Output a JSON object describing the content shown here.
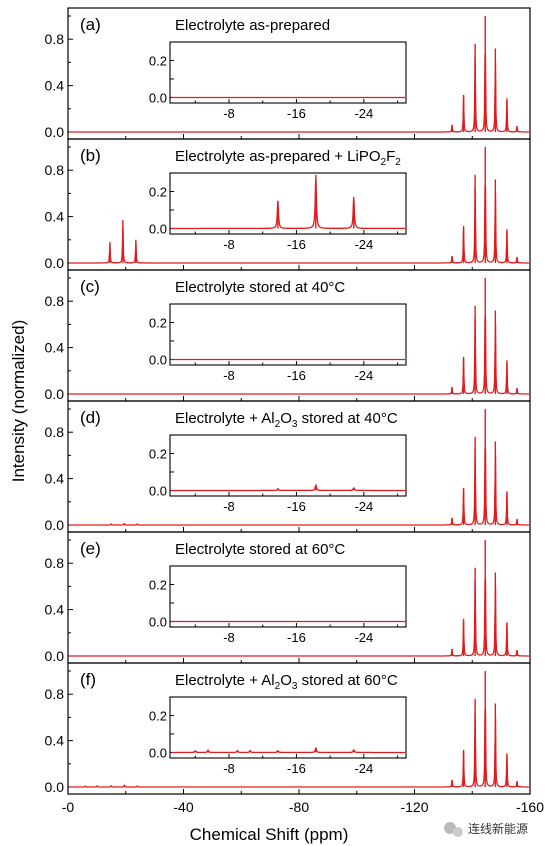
{
  "chart_data": {
    "type": "line",
    "xlabel": "Chemical Shift (ppm)",
    "ylabel": "Intensity (normalized)",
    "xlim": [
      0,
      -160
    ],
    "x_ticks": [
      0,
      -40,
      -80,
      -120,
      -160
    ],
    "x_tick_labels": [
      "-0",
      "-40",
      "-80",
      "-120",
      "-160"
    ],
    "ylim": [
      -0.05,
      1.08
    ],
    "y_ticks": [
      0.0,
      0.4,
      0.8
    ],
    "y_tick_labels": [
      "0.0",
      "0.4",
      "0.8"
    ],
    "color": "#e31a1c",
    "panels": [
      {
        "label": "(a)",
        "title": "Electrolyte as-prepared",
        "main_peaks": [
          {
            "x": -133,
            "y": 0.06
          },
          {
            "x": -137,
            "y": 0.32
          },
          {
            "x": -141,
            "y": 0.76
          },
          {
            "x": -144.5,
            "y": 1.0
          },
          {
            "x": -148,
            "y": 0.72
          },
          {
            "x": -152,
            "y": 0.29
          },
          {
            "x": -155.5,
            "y": 0.05
          }
        ],
        "side_peaks": [],
        "inset": {
          "xlim": [
            -1,
            -29
          ],
          "x_ticks": [
            -8,
            -16,
            -24
          ],
          "x_tick_labels": [
            "-8",
            "-16",
            "-24"
          ],
          "ylim": [
            -0.03,
            0.3
          ],
          "y_ticks": [
            0.0,
            0.1,
            0.2
          ],
          "y_tick_labels": [
            "0.0",
            "0.1",
            "0.2"
          ],
          "peaks": []
        }
      },
      {
        "label": "(b)",
        "title_parts": [
          "Electrolyte as-prepared + LiPO",
          "2",
          "F",
          "2"
        ],
        "main_peaks": [
          {
            "x": -133,
            "y": 0.06
          },
          {
            "x": -137,
            "y": 0.32
          },
          {
            "x": -141,
            "y": 0.76
          },
          {
            "x": -144.5,
            "y": 1.0
          },
          {
            "x": -148,
            "y": 0.72
          },
          {
            "x": -152,
            "y": 0.29
          },
          {
            "x": -155.5,
            "y": 0.05
          }
        ],
        "side_peaks": [
          {
            "x": -14.5,
            "y": 0.18
          },
          {
            "x": -19,
            "y": 0.37
          },
          {
            "x": -23.5,
            "y": 0.2
          }
        ],
        "inset": {
          "xlim": [
            -1,
            -29
          ],
          "x_ticks": [
            -8,
            -16,
            -24
          ],
          "x_tick_labels": [
            "-8",
            "-16",
            "-24"
          ],
          "ylim": [
            -0.03,
            0.3
          ],
          "y_ticks": [
            0.0,
            0.1,
            0.2
          ],
          "y_tick_labels": [
            "0.0",
            "0.1",
            "0.2"
          ],
          "peaks": [
            {
              "x": -13.8,
              "y": 0.15
            },
            {
              "x": -18.3,
              "y": 0.29
            },
            {
              "x": -22.8,
              "y": 0.17
            }
          ]
        }
      },
      {
        "label": "(c)",
        "title": "Electrolyte stored at 40°C",
        "main_peaks": [
          {
            "x": -133,
            "y": 0.06
          },
          {
            "x": -137,
            "y": 0.32
          },
          {
            "x": -141,
            "y": 0.76
          },
          {
            "x": -144.5,
            "y": 1.0
          },
          {
            "x": -148,
            "y": 0.72
          },
          {
            "x": -152,
            "y": 0.29
          },
          {
            "x": -155.5,
            "y": 0.05
          }
        ],
        "side_peaks": [],
        "inset": {
          "xlim": [
            -1,
            -29
          ],
          "x_ticks": [
            -8,
            -16,
            -24
          ],
          "x_tick_labels": [
            "-8",
            "-16",
            "-24"
          ],
          "ylim": [
            -0.03,
            0.3
          ],
          "y_ticks": [
            0.0,
            0.1,
            0.2
          ],
          "y_tick_labels": [
            "0.0",
            "0.1",
            "0.2"
          ],
          "peaks": []
        }
      },
      {
        "label": "(d)",
        "title_parts": [
          "Electrolyte + Al",
          "2",
          "O",
          "3",
          " stored at 40°C"
        ],
        "main_peaks": [
          {
            "x": -133,
            "y": 0.06
          },
          {
            "x": -137,
            "y": 0.32
          },
          {
            "x": -141,
            "y": 0.76
          },
          {
            "x": -144.5,
            "y": 1.0
          },
          {
            "x": -148,
            "y": 0.72
          },
          {
            "x": -152,
            "y": 0.29
          },
          {
            "x": -155.5,
            "y": 0.05
          }
        ],
        "side_peaks": [
          {
            "x": -15,
            "y": 0.01
          },
          {
            "x": -19.5,
            "y": 0.015
          },
          {
            "x": -24,
            "y": 0.01
          }
        ],
        "inset": {
          "xlim": [
            -1,
            -29
          ],
          "x_ticks": [
            -8,
            -16,
            -24
          ],
          "x_tick_labels": [
            "-8",
            "-16",
            "-24"
          ],
          "ylim": [
            -0.03,
            0.3
          ],
          "y_ticks": [
            0.0,
            0.1,
            0.2
          ],
          "y_tick_labels": [
            "0.0",
            "0.1",
            "0.2"
          ],
          "peaks": [
            {
              "x": -13.8,
              "y": 0.01
            },
            {
              "x": -18.3,
              "y": 0.03
            },
            {
              "x": -22.8,
              "y": 0.015
            }
          ]
        }
      },
      {
        "label": "(e)",
        "title": "Electrolyte stored at 60°C",
        "main_peaks": [
          {
            "x": -133,
            "y": 0.06
          },
          {
            "x": -137,
            "y": 0.32
          },
          {
            "x": -141,
            "y": 0.76
          },
          {
            "x": -144.5,
            "y": 1.0
          },
          {
            "x": -148,
            "y": 0.72
          },
          {
            "x": -152,
            "y": 0.29
          },
          {
            "x": -155.5,
            "y": 0.05
          }
        ],
        "side_peaks": [],
        "inset": {
          "xlim": [
            -1,
            -29
          ],
          "x_ticks": [
            -8,
            -16,
            -24
          ],
          "x_tick_labels": [
            "-8",
            "-16",
            "-24"
          ],
          "ylim": [
            -0.03,
            0.3
          ],
          "y_ticks": [
            0.0,
            0.1,
            0.2
          ],
          "y_tick_labels": [
            "0.0",
            "0.1",
            "0.2"
          ],
          "peaks": []
        }
      },
      {
        "label": "(f)",
        "title_parts": [
          "Electrolyte + Al",
          "2",
          "O",
          "3",
          " stored at 60°C"
        ],
        "main_peaks": [
          {
            "x": -133,
            "y": 0.06
          },
          {
            "x": -137,
            "y": 0.32
          },
          {
            "x": -141,
            "y": 0.76
          },
          {
            "x": -144.5,
            "y": 1.0
          },
          {
            "x": -148,
            "y": 0.72
          },
          {
            "x": -152,
            "y": 0.29
          },
          {
            "x": -155.5,
            "y": 0.05
          }
        ],
        "side_peaks": [
          {
            "x": -6,
            "y": 0.01
          },
          {
            "x": -10,
            "y": 0.01
          },
          {
            "x": -15,
            "y": 0.012
          },
          {
            "x": -19.5,
            "y": 0.018
          },
          {
            "x": -24,
            "y": 0.01
          }
        ],
        "inset": {
          "xlim": [
            -1,
            -29
          ],
          "x_ticks": [
            -8,
            -16,
            -24
          ],
          "x_tick_labels": [
            "-8",
            "-16",
            "-24"
          ],
          "ylim": [
            -0.03,
            0.3
          ],
          "y_ticks": [
            0.0,
            0.1,
            0.2
          ],
          "y_tick_labels": [
            "0.0",
            "0.1",
            "0.2"
          ],
          "peaks": [
            {
              "x": -4,
              "y": 0.01
            },
            {
              "x": -5.5,
              "y": 0.012
            },
            {
              "x": -9,
              "y": 0.01
            },
            {
              "x": -10.5,
              "y": 0.01
            },
            {
              "x": -13.8,
              "y": 0.01
            },
            {
              "x": -18.3,
              "y": 0.025
            },
            {
              "x": -22.8,
              "y": 0.015
            }
          ]
        }
      }
    ]
  },
  "watermark": {
    "text": "连线新能源",
    "icon": "wechat-icon"
  }
}
